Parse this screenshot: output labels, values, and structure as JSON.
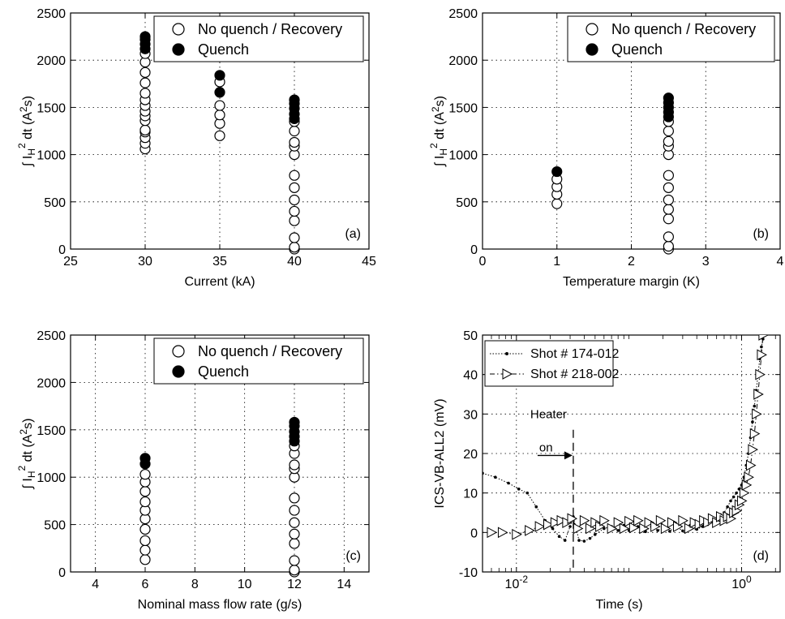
{
  "chart_data": [
    {
      "type": "scatter",
      "panel_label": "(a)",
      "xlabel": "Current (kA)",
      "ylabel": "∫ I_H² dt (A²s)",
      "xlim": [
        25,
        45
      ],
      "ylim": [
        0,
        2500
      ],
      "xticks": [
        "25",
        "30",
        "35",
        "40",
        "45"
      ],
      "yticks": [
        "0",
        "500",
        "1000",
        "1500",
        "2000",
        "2500"
      ],
      "grid": true,
      "legend_position": "top-right",
      "series": [
        {
          "name": "No quench / Recovery",
          "marker": "open-circle",
          "points": [
            [
              30,
              1060
            ],
            [
              30,
              1120
            ],
            [
              30,
              1180
            ],
            [
              30,
              1240
            ],
            [
              30,
              1260
            ],
            [
              30,
              1360
            ],
            [
              30,
              1410
            ],
            [
              30,
              1460
            ],
            [
              30,
              1520
            ],
            [
              30,
              1580
            ],
            [
              30,
              1650
            ],
            [
              30,
              1760
            ],
            [
              30,
              1870
            ],
            [
              30,
              1980
            ],
            [
              30,
              2070
            ],
            [
              35,
              1200
            ],
            [
              35,
              1330
            ],
            [
              35,
              1420
            ],
            [
              35,
              1520
            ],
            [
              35,
              1770
            ],
            [
              40,
              0
            ],
            [
              40,
              20
            ],
            [
              40,
              120
            ],
            [
              40,
              300
            ],
            [
              40,
              400
            ],
            [
              40,
              520
            ],
            [
              40,
              650
            ],
            [
              40,
              780
            ],
            [
              40,
              1000
            ],
            [
              40,
              1090
            ],
            [
              40,
              1130
            ],
            [
              40,
              1250
            ],
            [
              40,
              1350
            ]
          ]
        },
        {
          "name": "Quench",
          "marker": "filled-circle",
          "points": [
            [
              30,
              2120
            ],
            [
              30,
              2170
            ],
            [
              30,
              2220
            ],
            [
              30,
              2250
            ],
            [
              35,
              1660
            ],
            [
              35,
              1840
            ],
            [
              40,
              1380
            ],
            [
              40,
              1430
            ],
            [
              40,
              1490
            ],
            [
              40,
              1540
            ],
            [
              40,
              1580
            ]
          ]
        }
      ]
    },
    {
      "type": "scatter",
      "panel_label": "(b)",
      "xlabel": "Temperature margin (K)",
      "ylabel": "∫ I_H² dt (A²s)",
      "xlim": [
        0,
        4
      ],
      "ylim": [
        0,
        2500
      ],
      "xticks": [
        "0",
        "1",
        "2",
        "3",
        "4"
      ],
      "yticks": [
        "0",
        "500",
        "1000",
        "1500",
        "2000",
        "2500"
      ],
      "grid": true,
      "legend_position": "top-right",
      "series": [
        {
          "name": "No quench / Recovery",
          "marker": "open-circle",
          "points": [
            [
              1,
              480
            ],
            [
              1,
              580
            ],
            [
              1,
              660
            ],
            [
              1,
              740
            ],
            [
              2.5,
              0
            ],
            [
              2.5,
              30
            ],
            [
              2.5,
              130
            ],
            [
              2.5,
              320
            ],
            [
              2.5,
              420
            ],
            [
              2.5,
              520
            ],
            [
              2.5,
              650
            ],
            [
              2.5,
              780
            ],
            [
              2.5,
              1000
            ],
            [
              2.5,
              1090
            ],
            [
              2.5,
              1140
            ],
            [
              2.5,
              1250
            ],
            [
              2.5,
              1350
            ]
          ]
        },
        {
          "name": "Quench",
          "marker": "filled-circle",
          "points": [
            [
              1,
              820
            ],
            [
              2.5,
              1400
            ],
            [
              2.5,
              1450
            ],
            [
              2.5,
              1500
            ],
            [
              2.5,
              1550
            ],
            [
              2.5,
              1600
            ]
          ]
        }
      ]
    },
    {
      "type": "scatter",
      "panel_label": "(c)",
      "xlabel": "Nominal mass flow rate (g/s)",
      "ylabel": "∫ I_H² dt (A²s)",
      "xlim": [
        3,
        15
      ],
      "ylim": [
        0,
        2500
      ],
      "xticks": [
        "4",
        "6",
        "8",
        "10",
        "12",
        "14"
      ],
      "xtick_values": [
        4,
        6,
        8,
        10,
        12,
        14
      ],
      "yticks": [
        "0",
        "500",
        "1000",
        "1500",
        "2000",
        "2500"
      ],
      "grid": true,
      "legend_position": "top-right",
      "series": [
        {
          "name": "No quench / Recovery",
          "marker": "open-circle",
          "points": [
            [
              6,
              130
            ],
            [
              6,
              230
            ],
            [
              6,
              330
            ],
            [
              6,
              450
            ],
            [
              6,
              560
            ],
            [
              6,
              650
            ],
            [
              6,
              740
            ],
            [
              6,
              850
            ],
            [
              6,
              950
            ],
            [
              6,
              1030
            ],
            [
              12,
              0
            ],
            [
              12,
              20
            ],
            [
              12,
              120
            ],
            [
              12,
              300
            ],
            [
              12,
              400
            ],
            [
              12,
              520
            ],
            [
              12,
              650
            ],
            [
              12,
              780
            ],
            [
              12,
              1000
            ],
            [
              12,
              1090
            ],
            [
              12,
              1130
            ],
            [
              12,
              1250
            ],
            [
              12,
              1330
            ]
          ]
        },
        {
          "name": "Quench",
          "marker": "filled-circle",
          "points": [
            [
              6,
              1140
            ],
            [
              6,
              1200
            ],
            [
              12,
              1380
            ],
            [
              12,
              1430
            ],
            [
              12,
              1480
            ],
            [
              12,
              1540
            ],
            [
              12,
              1580
            ]
          ]
        }
      ]
    },
    {
      "type": "line",
      "panel_label": "(d)",
      "xlabel": "Time (s)",
      "ylabel": "ICS-VB-ALL2 (mV)",
      "xscale": "log",
      "xlim": [
        0.005,
        2.2
      ],
      "ylim": [
        -10,
        50
      ],
      "xticks": [
        "10^-2",
        "10^0"
      ],
      "xtick_values": [
        0.01,
        1
      ],
      "yticks": [
        "-10",
        "0",
        "10",
        "20",
        "30",
        "40",
        "50"
      ],
      "grid": true,
      "legend_position": "top-left",
      "annotation": {
        "text_line1": "Heater",
        "text_line2": "on",
        "x": 0.032
      },
      "series": [
        {
          "name": "Shot # 174-012",
          "marker": "dot",
          "style": "dotted",
          "x": [
            0.005,
            0.0065,
            0.0085,
            0.0105,
            0.0125,
            0.015,
            0.018,
            0.021,
            0.024,
            0.027,
            0.03,
            0.032,
            0.036,
            0.04,
            0.045,
            0.05,
            0.06,
            0.07,
            0.08,
            0.09,
            0.1,
            0.12,
            0.14,
            0.16,
            0.18,
            0.2,
            0.23,
            0.26,
            0.3,
            0.35,
            0.4,
            0.45,
            0.5,
            0.55,
            0.6,
            0.65,
            0.7,
            0.75,
            0.8,
            0.85,
            0.9,
            0.95,
            1.0,
            1.05,
            1.1,
            1.15,
            1.2,
            1.25,
            1.3,
            1.35,
            1.4,
            1.45,
            1.5,
            1.55,
            1.6
          ],
          "y": [
            15,
            14,
            12.5,
            11,
            10,
            6.5,
            3,
            1,
            -1,
            -2,
            1.5,
            4,
            -2,
            -2.2,
            -1.5,
            -0.5,
            1,
            1.5,
            0.5,
            1.8,
            0.5,
            1.5,
            0.2,
            1.8,
            0.5,
            1.2,
            0.3,
            1.6,
            0.4,
            1.8,
            0.8,
            1.5,
            2,
            3,
            3.5,
            4.5,
            5,
            6.5,
            8,
            9,
            10,
            11,
            12,
            14,
            17,
            20,
            24,
            28,
            32,
            36,
            40,
            44,
            47,
            49,
            50
          ]
        },
        {
          "name": "Shot # 218-002",
          "marker": "open-triangle-right",
          "style": "dash-dot",
          "x": [
            0.006,
            0.0075,
            0.01,
            0.013,
            0.016,
            0.019,
            0.022,
            0.025,
            0.028,
            0.031,
            0.035,
            0.04,
            0.045,
            0.05,
            0.055,
            0.06,
            0.07,
            0.08,
            0.09,
            0.1,
            0.11,
            0.12,
            0.135,
            0.15,
            0.17,
            0.19,
            0.21,
            0.24,
            0.27,
            0.3,
            0.34,
            0.38,
            0.42,
            0.46,
            0.5,
            0.55,
            0.6,
            0.65,
            0.7,
            0.75,
            0.8,
            0.85,
            0.9,
            0.95,
            1.0,
            1.05,
            1.1,
            1.15,
            1.2,
            1.25,
            1.3,
            1.35,
            1.4,
            1.45,
            1.5,
            1.55
          ],
          "y": [
            0,
            0,
            -0.5,
            0.5,
            1.5,
            2,
            2.5,
            3,
            2.5,
            3.5,
            1,
            3,
            1,
            2.5,
            1.5,
            3,
            1,
            2.5,
            1,
            2.8,
            1.2,
            3,
            1,
            2.5,
            1.5,
            3,
            1,
            2.5,
            1.5,
            3,
            1,
            2.5,
            2,
            3,
            2.5,
            3.5,
            2.5,
            4,
            3,
            4,
            3.5,
            5,
            5.5,
            7,
            8,
            10,
            12,
            14,
            17,
            21,
            25,
            30,
            35,
            40,
            45,
            50
          ]
        }
      ]
    }
  ]
}
